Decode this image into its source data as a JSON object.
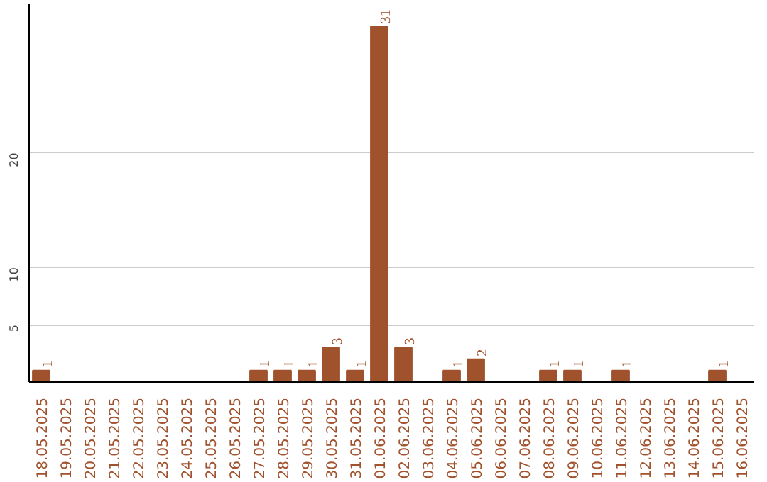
{
  "chart_data": {
    "type": "bar",
    "categories": [
      "18.05.2025",
      "19.05.2025",
      "20.05.2025",
      "21.05.2025",
      "22.05.2025",
      "23.05.2025",
      "24.05.2025",
      "25.05.2025",
      "26.05.2025",
      "27.05.2025",
      "28.05.2025",
      "29.05.2025",
      "30.05.2025",
      "31.05.2025",
      "01.06.2025",
      "02.06.2025",
      "03.06.2025",
      "04.06.2025",
      "05.06.2025",
      "06.06.2025",
      "07.06.2025",
      "08.06.2025",
      "09.06.2025",
      "10.06.2025",
      "11.06.2025",
      "12.06.2025",
      "13.06.2025",
      "14.06.2025",
      "15.06.2025",
      "16.06.2025"
    ],
    "values": [
      1,
      0,
      0,
      0,
      0,
      0,
      0,
      0,
      0,
      1,
      1,
      1,
      3,
      1,
      31,
      3,
      0,
      1,
      2,
      0,
      0,
      1,
      1,
      0,
      1,
      0,
      0,
      0,
      1,
      0
    ],
    "value_labels": [
      "1",
      null,
      null,
      null,
      null,
      null,
      null,
      null,
      null,
      "1",
      "1",
      "1",
      "3",
      "1",
      "31",
      "3",
      null,
      "1",
      "2",
      null,
      null,
      "1",
      "1",
      null,
      "1",
      null,
      null,
      null,
      "1",
      null
    ],
    "color": "#a0522d",
    "ylim": [
      0,
      33
    ],
    "yticks": [
      5,
      10,
      20
    ],
    "grid": "y"
  }
}
